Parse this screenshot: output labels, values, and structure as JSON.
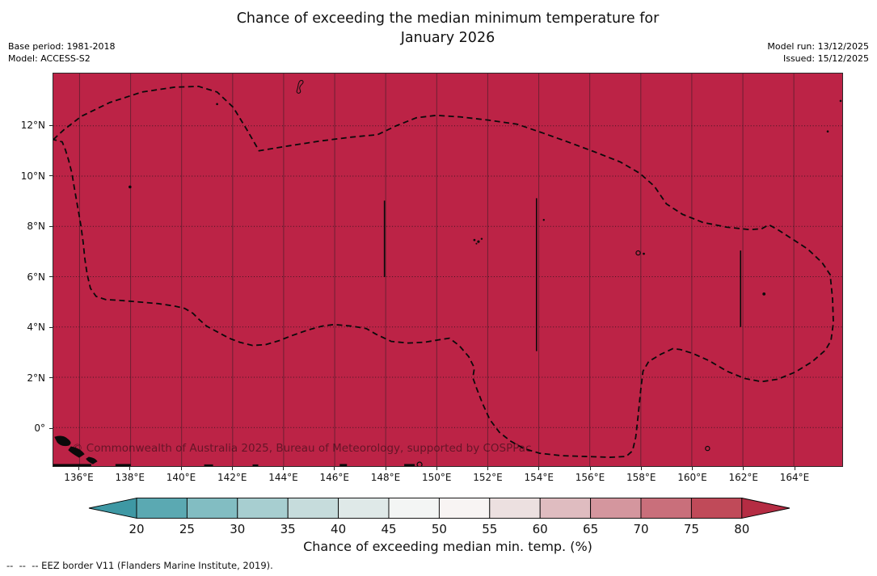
{
  "title": {
    "line1": "Chance of exceeding the median minimum temperature for",
    "line2": "January 2026"
  },
  "meta": {
    "base_period": "Base period: 1981-2018",
    "model": "Model: ACCESS-S2",
    "model_run": "Model run: 13/12/2025",
    "issued": "Issued: 15/12/2025"
  },
  "map": {
    "fill_color": "#bc2346",
    "watermark": "© Commonwealth of Australia 2025, Bureau of Meteorology, supported by COSPPac",
    "x_ticks": [
      "136°E",
      "138°E",
      "140°E",
      "142°E",
      "144°E",
      "146°E",
      "148°E",
      "150°E",
      "152°E",
      "154°E",
      "156°E",
      "158°E",
      "160°E",
      "162°E",
      "164°E"
    ],
    "y_ticks": [
      "12°N",
      "10°N",
      "8°N",
      "6°N",
      "4°N",
      "2°N",
      "0°"
    ]
  },
  "colorbar": {
    "label": "Chance of exceeding median min. temp. (%)",
    "ticks": [
      "20",
      "25",
      "30",
      "35",
      "40",
      "45",
      "50",
      "55",
      "60",
      "65",
      "70",
      "75",
      "80"
    ],
    "arrow_left_color": "#3e98a4",
    "arrow_right_color": "#b52c43",
    "segment_colors": [
      "#5ba9b2",
      "#82bdc2",
      "#a7ced0",
      "#c6dcdc",
      "#dfe9e8",
      "#f3f5f4",
      "#f8f4f3",
      "#ece0e0",
      "#dfbcc0",
      "#d4969e",
      "#c96f7b",
      "#c04a59"
    ]
  },
  "footer": {
    "eez_note": "--  --  -- EEZ border V11 (Flanders Marine Institute, 2019)."
  },
  "chart_data": {
    "type": "heatmap",
    "title": "Chance of exceeding the median minimum temperature for January 2026",
    "base_period": "1981-2018",
    "model": "ACCESS-S2",
    "model_run": "13/12/2025",
    "issued": "15/12/2025",
    "x_ticks": [
      "136°E",
      "138°E",
      "140°E",
      "142°E",
      "144°E",
      "146°E",
      "148°E",
      "150°E",
      "152°E",
      "154°E",
      "156°E",
      "158°E",
      "160°E",
      "162°E",
      "164°E"
    ],
    "y_ticks": [
      "12°N",
      "10°N",
      "8°N",
      "6°N",
      "4°N",
      "2°N",
      "0°"
    ],
    "colorbar_label": "Chance of exceeding median min. temp. (%)",
    "colorbar_ticks": [
      20,
      25,
      30,
      35,
      40,
      45,
      50,
      55,
      60,
      65,
      70,
      75,
      80
    ],
    "colorbar_extends": "both",
    "field_value": "uniform > 80% over entire displayed domain",
    "overlays": [
      "dashed EEZ border loop",
      "solid EEZ segments at 148°E, 154°E, 162°E",
      "small island outlines"
    ],
    "legend_note": "EEZ border V11 (Flanders Marine Institute, 2019)."
  }
}
